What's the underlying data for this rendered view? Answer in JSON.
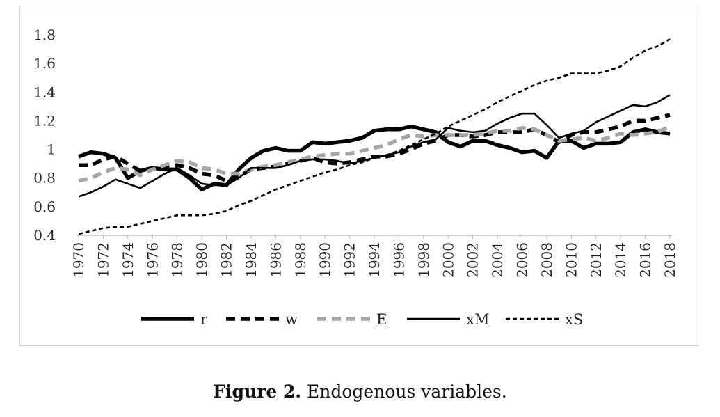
{
  "chart_data": {
    "type": "line",
    "title": "",
    "xlabel": "",
    "ylabel": "",
    "ylim": [
      0.4,
      1.8
    ],
    "yticks": [
      "0.4",
      "0.6",
      "0.8",
      "1",
      "1.2",
      "1.4",
      "1.6",
      "1.8"
    ],
    "x": [
      1970,
      1971,
      1972,
      1973,
      1974,
      1975,
      1976,
      1977,
      1978,
      1979,
      1980,
      1981,
      1982,
      1983,
      1984,
      1985,
      1986,
      1987,
      1988,
      1989,
      1990,
      1991,
      1992,
      1993,
      1994,
      1995,
      1996,
      1997,
      1998,
      1999,
      2000,
      2001,
      2002,
      2003,
      2004,
      2005,
      2006,
      2007,
      2008,
      2009,
      2010,
      2011,
      2012,
      2013,
      2014,
      2015,
      2016,
      2017,
      2018
    ],
    "xticks": [
      "1970",
      "1972",
      "1974",
      "1976",
      "1978",
      "1980",
      "1982",
      "1984",
      "1986",
      "1988",
      "1990",
      "1992",
      "1994",
      "1996",
      "1998",
      "2000",
      "2002",
      "2004",
      "2006",
      "2008",
      "2010",
      "2012",
      "2014",
      "2016",
      "2018"
    ],
    "grid": false,
    "legend_position": "bottom",
    "series": [
      {
        "name": "r",
        "color": "#000000",
        "dash": "solid",
        "width": "thick",
        "values": [
          0.95,
          0.98,
          0.97,
          0.94,
          0.8,
          0.85,
          0.87,
          0.86,
          0.86,
          0.8,
          0.72,
          0.76,
          0.75,
          0.86,
          0.94,
          0.99,
          1.01,
          0.99,
          0.99,
          1.05,
          1.04,
          1.05,
          1.06,
          1.08,
          1.13,
          1.14,
          1.14,
          1.16,
          1.14,
          1.12,
          1.05,
          1.02,
          1.06,
          1.06,
          1.03,
          1.01,
          0.98,
          0.99,
          0.94,
          1.06,
          1.06,
          1.01,
          1.04,
          1.04,
          1.05,
          1.12,
          1.14,
          1.12,
          1.11
        ]
      },
      {
        "name": "w",
        "color": "#000000",
        "dash": "dashed",
        "width": "thick",
        "values": [
          0.89,
          0.89,
          0.93,
          0.95,
          0.9,
          0.85,
          0.87,
          0.87,
          0.89,
          0.87,
          0.83,
          0.82,
          0.78,
          0.81,
          0.86,
          0.87,
          0.88,
          0.9,
          0.92,
          0.94,
          0.91,
          0.9,
          0.91,
          0.93,
          0.95,
          0.95,
          0.97,
          1.0,
          1.04,
          1.06,
          1.1,
          1.1,
          1.09,
          1.1,
          1.12,
          1.12,
          1.12,
          1.14,
          1.1,
          1.05,
          1.1,
          1.12,
          1.12,
          1.14,
          1.16,
          1.2,
          1.2,
          1.22,
          1.24
        ]
      },
      {
        "name": "E",
        "color": "#a6a6a6",
        "dash": "dashed",
        "width": "thick",
        "values": [
          0.78,
          0.8,
          0.84,
          0.87,
          0.86,
          0.82,
          0.86,
          0.89,
          0.92,
          0.91,
          0.87,
          0.86,
          0.83,
          0.83,
          0.86,
          0.88,
          0.89,
          0.91,
          0.93,
          0.95,
          0.96,
          0.97,
          0.97,
          0.99,
          1.01,
          1.03,
          1.07,
          1.1,
          1.09,
          1.1,
          1.1,
          1.1,
          1.1,
          1.11,
          1.13,
          1.13,
          1.15,
          1.14,
          1.1,
          1.06,
          1.07,
          1.08,
          1.06,
          1.08,
          1.11,
          1.1,
          1.11,
          1.12,
          1.16
        ]
      },
      {
        "name": "xM",
        "color": "#000000",
        "dash": "solid",
        "width": "thin",
        "values": [
          0.67,
          0.7,
          0.74,
          0.79,
          0.76,
          0.73,
          0.78,
          0.83,
          0.87,
          0.82,
          0.76,
          0.75,
          0.75,
          0.8,
          0.87,
          0.87,
          0.87,
          0.89,
          0.92,
          0.93,
          0.93,
          0.92,
          0.9,
          0.92,
          0.94,
          0.96,
          0.98,
          1.02,
          1.05,
          1.07,
          1.15,
          1.13,
          1.12,
          1.13,
          1.18,
          1.22,
          1.25,
          1.25,
          1.17,
          1.08,
          1.11,
          1.13,
          1.19,
          1.23,
          1.27,
          1.31,
          1.3,
          1.33,
          1.38
        ]
      },
      {
        "name": "xS",
        "color": "#000000",
        "dash": "dotted",
        "width": "thin",
        "values": [
          0.41,
          0.43,
          0.45,
          0.46,
          0.46,
          0.48,
          0.5,
          0.52,
          0.54,
          0.54,
          0.54,
          0.55,
          0.57,
          0.61,
          0.64,
          0.68,
          0.72,
          0.75,
          0.78,
          0.81,
          0.84,
          0.86,
          0.89,
          0.91,
          0.94,
          0.96,
          0.99,
          1.03,
          1.07,
          1.11,
          1.16,
          1.2,
          1.24,
          1.28,
          1.33,
          1.37,
          1.41,
          1.45,
          1.48,
          1.5,
          1.53,
          1.53,
          1.53,
          1.55,
          1.58,
          1.64,
          1.69,
          1.72,
          1.77
        ]
      }
    ]
  },
  "caption": {
    "label": "Figure 2.",
    "text": " Endogenous variables."
  }
}
